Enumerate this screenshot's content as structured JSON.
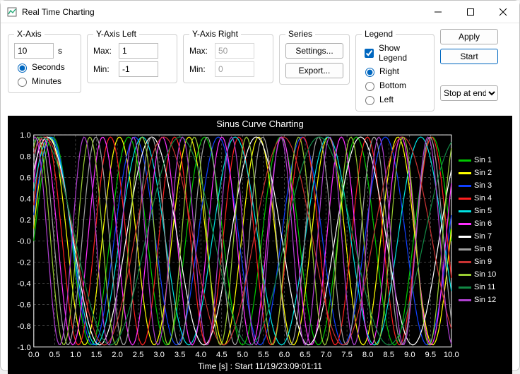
{
  "window": {
    "title": "Real Time Charting"
  },
  "xaxis": {
    "legend": "X-Axis",
    "value": "10",
    "unit": "s",
    "opt_seconds": "Seconds",
    "opt_minutes": "Minutes",
    "selected": "seconds"
  },
  "yleft": {
    "legend": "Y-Axis Left",
    "max_label": "Max:",
    "min_label": "Min:",
    "max": "1",
    "min": "-1"
  },
  "yright": {
    "legend": "Y-Axis Right",
    "max_label": "Max:",
    "min_label": "Min:",
    "max": "50",
    "min": "0"
  },
  "series_group": {
    "legend": "Series",
    "settings": "Settings...",
    "export": "Export..."
  },
  "legend_group": {
    "legend": "Legend",
    "show": "Show Legend",
    "right": "Right",
    "bottom": "Bottom",
    "left": "Left"
  },
  "actions": {
    "apply": "Apply",
    "start": "Start",
    "dropdown": "Stop at end"
  },
  "chart": {
    "title": "Sinus Curve Charting",
    "x_caption": "Time [s] : Start 11/19/23:09:01:11",
    "bg": "#000000",
    "grid_color": "#808080",
    "axis_color": "#ffffff",
    "tick_color": "#ffffff",
    "xlim": [
      0,
      10
    ],
    "ylim": [
      -1,
      1
    ],
    "xticks": [
      "0.0",
      "0.5",
      "1.0",
      "1.5",
      "2.0",
      "2.5",
      "3.0",
      "3.5",
      "4.0",
      "4.5",
      "5.0",
      "5.5",
      "6.0",
      "6.5",
      "7.0",
      "7.5",
      "8.0",
      "8.5",
      "9.0",
      "9.5",
      "10.0"
    ],
    "yticks": [
      "-1.0",
      "-0.8",
      "-0.6",
      "-0.4",
      "-0.2",
      "-0.0",
      "0.2",
      "0.4",
      "0.6",
      "0.8",
      "1.0"
    ],
    "tick_fontsize": 11,
    "line_width": 1.2,
    "series": [
      {
        "name": "Sin 1",
        "color": "#00c800",
        "period": 1.818,
        "phase": 0.0,
        "amp": 0.98
      },
      {
        "name": "Sin 2",
        "color": "#ffff00",
        "period": 1.667,
        "phase": 0.12,
        "amp": 0.98
      },
      {
        "name": "Sin 3",
        "color": "#1040ff",
        "period": 2.0,
        "phase": 0.25,
        "amp": 0.98
      },
      {
        "name": "Sin 4",
        "color": "#ff2020",
        "period": 1.538,
        "phase": 0.35,
        "amp": 0.98
      },
      {
        "name": "Sin 5",
        "color": "#00e0e0",
        "period": 2.222,
        "phase": 0.5,
        "amp": 0.98
      },
      {
        "name": "Sin 6",
        "color": "#ff30ff",
        "period": 1.429,
        "phase": 0.6,
        "amp": 0.98
      },
      {
        "name": "Sin 7",
        "color": "#ffffff",
        "period": 2.5,
        "phase": 0.75,
        "amp": 0.98
      },
      {
        "name": "Sin 8",
        "color": "#a0a0a0",
        "period": 1.333,
        "phase": 0.85,
        "amp": 0.98
      },
      {
        "name": "Sin 9",
        "color": "#c83232",
        "period": 2.857,
        "phase": 1.0,
        "amp": 0.98
      },
      {
        "name": "Sin 10",
        "color": "#9acd32",
        "period": 1.25,
        "phase": 1.1,
        "amp": 0.98
      },
      {
        "name": "Sin 11",
        "color": "#118844",
        "period": 3.333,
        "phase": 1.25,
        "amp": 0.98
      },
      {
        "name": "Sin 12",
        "color": "#b040d0",
        "period": 1.176,
        "phase": 1.4,
        "amp": 0.98
      }
    ]
  }
}
